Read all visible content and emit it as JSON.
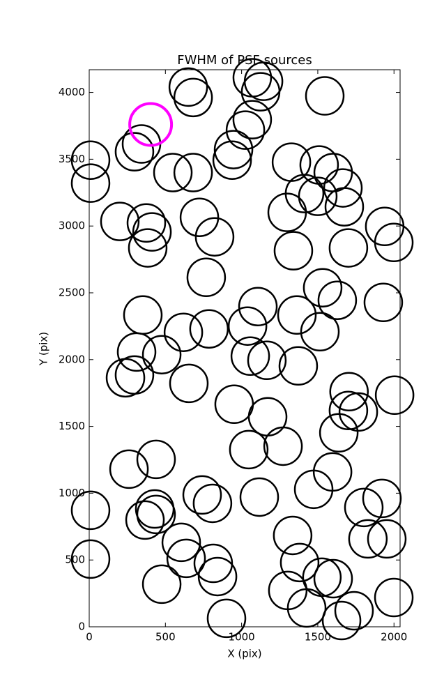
{
  "chart_data": {
    "type": "scatter",
    "title": "FWHM of PSF sources",
    "x_label": "X (pix)",
    "y_label": "Y (pix)",
    "xlim": [
      0,
      2040
    ],
    "ylim": [
      0,
      4170
    ],
    "xticks": [
      0,
      500,
      1000,
      1500,
      2000
    ],
    "yticks": [
      0,
      500,
      1000,
      1500,
      2000,
      2500,
      3000,
      3500,
      4000
    ],
    "grid": false,
    "series": [
      {
        "color": "#000000",
        "x": [
          650,
          682,
          1070,
          1144,
          1125,
          1546,
          1070,
          1025,
          947,
          938,
          297,
          343,
          9,
          9,
          549,
          682,
          1327,
          1509,
          1601,
          1665,
          1674,
          1500,
          1413,
          1299,
          1340,
          1701,
          1939,
          1999,
          201,
          375,
          412,
          384,
          723,
          823,
          768,
          1532,
          1628,
          1930,
          1107,
          1039,
          1363,
          1514,
          352,
          618,
          786,
          311,
          476,
          1057,
          1166,
          1372,
          238,
          297,
          654,
          1705,
          2004,
          951,
          1171,
          1701,
          1766,
          1638,
          1047,
          1272,
          1597,
          1473,
          261,
          439,
          741,
          809,
          1116,
          1921,
          1802,
          1829,
          1953,
          9,
          430,
          439,
          366,
          1335,
          604,
          636,
          1381,
          9,
          814,
          842,
          476,
          1527,
          1601,
          1303,
          1427,
          1999,
          1738,
          1656,
          901
        ],
        "values": [
          4040,
          3962,
          4110,
          4083,
          4005,
          3974,
          3796,
          3718,
          3572,
          3493,
          3556,
          3614,
          3493,
          3321,
          3400,
          3400,
          3478,
          3457,
          3400,
          3285,
          3144,
          3222,
          3243,
          3102,
          2815,
          2836,
          2997,
          2877,
          3034,
          3023,
          2956,
          2836,
          3065,
          2919,
          2616,
          2538,
          2444,
          2428,
          2397,
          2251,
          2334,
          2209,
          2334,
          2204,
          2230,
          2057,
          2037,
          2026,
          1995,
          1953,
          1864,
          1885,
          1822,
          1760,
          1734,
          1666,
          1572,
          1619,
          1608,
          1452,
          1326,
          1352,
          1159,
          1029,
          1180,
          1253,
          987,
          924,
          971,
          961,
          893,
          658,
          658,
          872,
          882,
          841,
          799,
          684,
          632,
          512,
          481,
          507,
          475,
          376,
          319,
          371,
          360,
          272,
          141,
          219,
          120,
          47,
          63
        ]
      },
      {
        "color": "#ff00ff",
        "x": [
          403
        ],
        "values": [
          3760
        ]
      }
    ]
  }
}
